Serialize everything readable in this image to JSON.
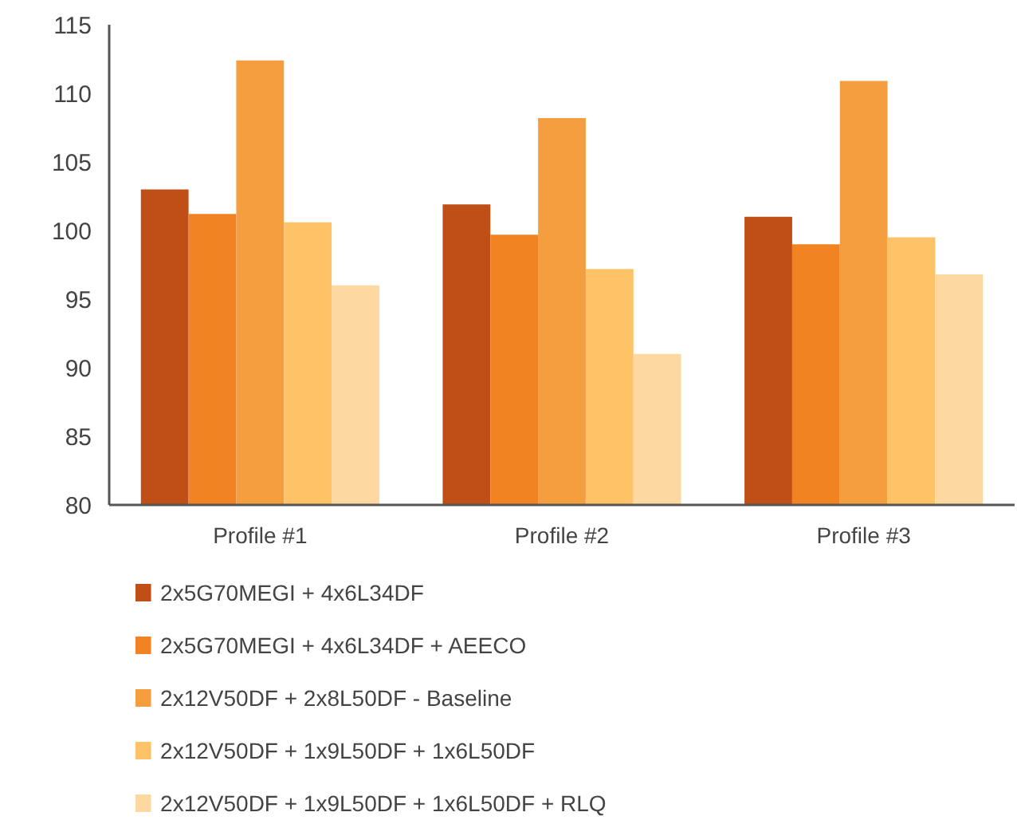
{
  "chart_data": {
    "type": "bar",
    "categories": [
      "Profile #1",
      "Profile #2",
      "Profile #3"
    ],
    "series": [
      {
        "name": "2x5G70MEGI + 4x6L34DF",
        "color": "#bf4f16",
        "values": [
          103.0,
          101.9,
          101.0
        ]
      },
      {
        "name": "2x5G70MEGI + 4x6L34DF + AEECO",
        "color": "#f28322",
        "values": [
          101.2,
          99.7,
          99.0
        ]
      },
      {
        "name": "2x12V50DF + 2x8L50DF - Baseline",
        "color": "#f59e3f",
        "values": [
          112.4,
          108.2,
          110.9
        ]
      },
      {
        "name": "2x12V50DF + 1x9L50DF + 1x6L50DF",
        "color": "#fdc366",
        "values": [
          100.6,
          97.2,
          99.5
        ]
      },
      {
        "name": "2x12V50DF + 1x9L50DF + 1x6L50DF + RLQ",
        "color": "#fdd8a0",
        "values": [
          96.0,
          91.0,
          96.8
        ]
      }
    ],
    "ylim": [
      80,
      115
    ],
    "yticks": [
      80,
      85,
      90,
      95,
      100,
      105,
      110,
      115
    ],
    "grid": false,
    "legend": "bottom"
  }
}
